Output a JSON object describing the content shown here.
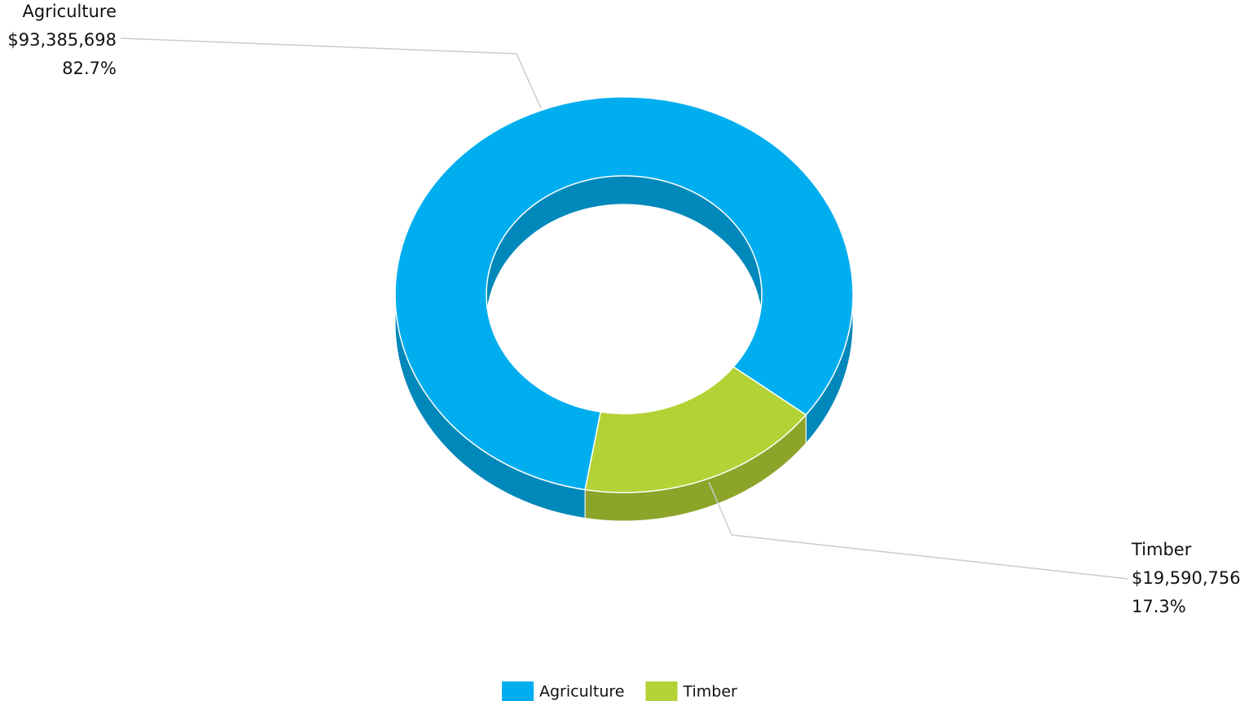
{
  "chart_data": {
    "type": "donut3d",
    "categories": [
      "Agriculture",
      "Timber"
    ],
    "values": [
      93385698,
      19590756
    ],
    "value_labels": [
      "$93,385,698",
      "$19,590,756"
    ],
    "percents": [
      82.7,
      17.3
    ],
    "percent_labels": [
      "82.7%",
      "17.3%"
    ],
    "colors": [
      "#00aeef",
      "#b3d235"
    ],
    "legend": "bottom"
  }
}
